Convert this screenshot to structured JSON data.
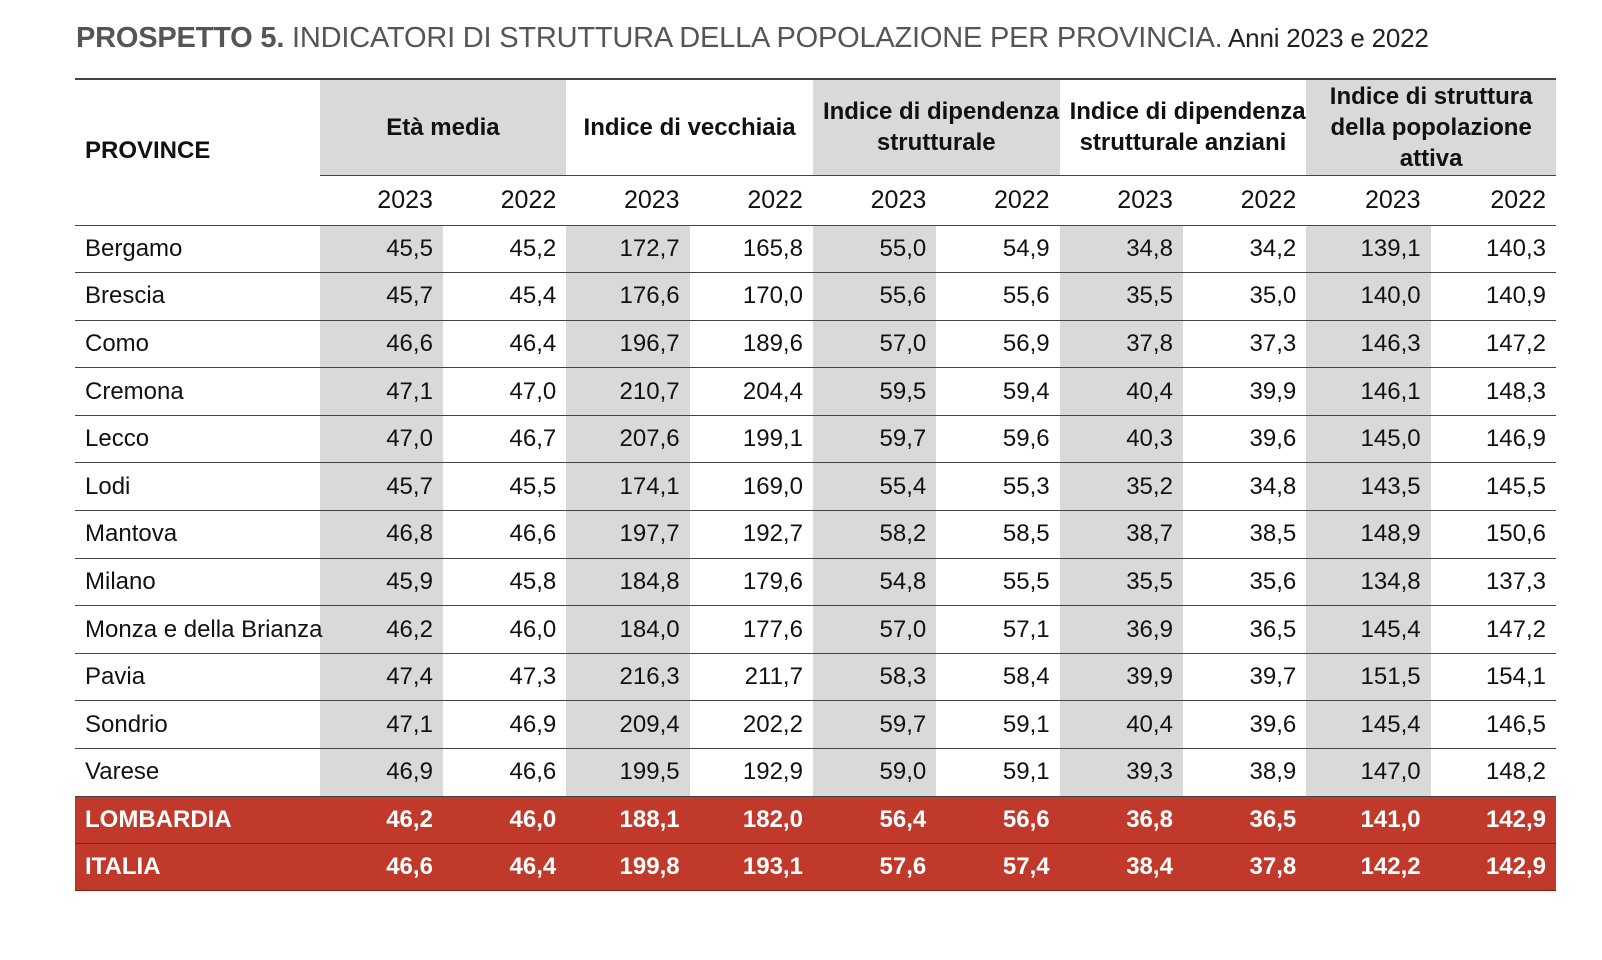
{
  "title": {
    "lead": "PROSPETTO 5.",
    "main": " INDICATORI DI STRUTTURA DELLA POPOLAZIONE PER PROVINCIA.",
    "years": " Anni 2023 e 2022"
  },
  "header": {
    "province": "PROVINCE",
    "groups": [
      [
        "Età media"
      ],
      [
        "Indice di vecchiaia"
      ],
      [
        "Indice di dipendenza",
        "strutturale"
      ],
      [
        "Indice di dipendenza",
        "strutturale anziani"
      ],
      [
        "Indice di struttura",
        "della popolazione",
        "attiva"
      ]
    ],
    "years": [
      "2023",
      "2022",
      "2023",
      "2022",
      "2023",
      "2022",
      "2023",
      "2022",
      "2023",
      "2022"
    ]
  },
  "rows": [
    {
      "name": "Bergamo",
      "values": [
        "45,5",
        "45,2",
        "172,7",
        "165,8",
        "55,0",
        "54,9",
        "34,8",
        "34,2",
        "139,1",
        "140,3"
      ]
    },
    {
      "name": "Brescia",
      "values": [
        "45,7",
        "45,4",
        "176,6",
        "170,0",
        "55,6",
        "55,6",
        "35,5",
        "35,0",
        "140,0",
        "140,9"
      ]
    },
    {
      "name": "Como",
      "values": [
        "46,6",
        "46,4",
        "196,7",
        "189,6",
        "57,0",
        "56,9",
        "37,8",
        "37,3",
        "146,3",
        "147,2"
      ]
    },
    {
      "name": "Cremona",
      "values": [
        "47,1",
        "47,0",
        "210,7",
        "204,4",
        "59,5",
        "59,4",
        "40,4",
        "39,9",
        "146,1",
        "148,3"
      ]
    },
    {
      "name": "Lecco",
      "values": [
        "47,0",
        "46,7",
        "207,6",
        "199,1",
        "59,7",
        "59,6",
        "40,3",
        "39,6",
        "145,0",
        "146,9"
      ]
    },
    {
      "name": "Lodi",
      "values": [
        "45,7",
        "45,5",
        "174,1",
        "169,0",
        "55,4",
        "55,3",
        "35,2",
        "34,8",
        "143,5",
        "145,5"
      ]
    },
    {
      "name": "Mantova",
      "values": [
        "46,8",
        "46,6",
        "197,7",
        "192,7",
        "58,2",
        "58,5",
        "38,7",
        "38,5",
        "148,9",
        "150,6"
      ]
    },
    {
      "name": "Milano",
      "values": [
        "45,9",
        "45,8",
        "184,8",
        "179,6",
        "54,8",
        "55,5",
        "35,5",
        "35,6",
        "134,8",
        "137,3"
      ]
    },
    {
      "name": "Monza e della Brianza",
      "values": [
        "46,2",
        "46,0",
        "184,0",
        "177,6",
        "57,0",
        "57,1",
        "36,9",
        "36,5",
        "145,4",
        "147,2"
      ]
    },
    {
      "name": "Pavia",
      "values": [
        "47,4",
        "47,3",
        "216,3",
        "211,7",
        "58,3",
        "58,4",
        "39,9",
        "39,7",
        "151,5",
        "154,1"
      ]
    },
    {
      "name": "Sondrio",
      "values": [
        "47,1",
        "46,9",
        "209,4",
        "202,2",
        "59,7",
        "59,1",
        "40,4",
        "39,6",
        "145,4",
        "146,5"
      ]
    },
    {
      "name": "Varese",
      "values": [
        "46,9",
        "46,6",
        "199,5",
        "192,9",
        "59,0",
        "59,1",
        "39,3",
        "38,9",
        "147,0",
        "148,2"
      ]
    }
  ],
  "totals": [
    {
      "name": "LOMBARDIA",
      "values": [
        "46,2",
        "46,0",
        "188,1",
        "182,0",
        "56,4",
        "56,6",
        "36,8",
        "36,5",
        "141,0",
        "142,9"
      ]
    },
    {
      "name": "ITALIA",
      "values": [
        "46,6",
        "46,4",
        "199,8",
        "193,1",
        "57,6",
        "57,4",
        "38,4",
        "37,8",
        "142,2",
        "142,9"
      ]
    }
  ],
  "colors": {
    "total_band": "#c0392b",
    "shaded_column": "#d9d9d9",
    "title_text": "#555555"
  }
}
